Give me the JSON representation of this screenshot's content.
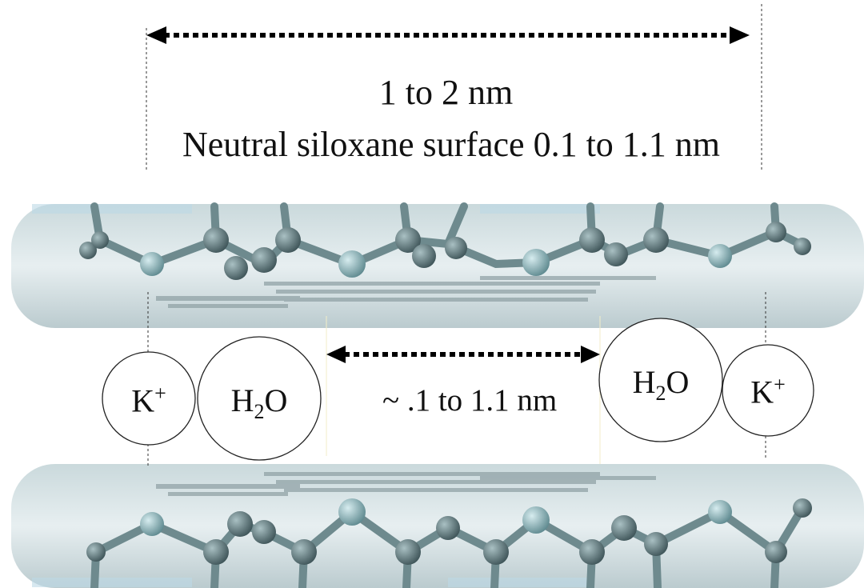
{
  "labels": {
    "outer_distance": "1 to 2 nm",
    "siloxane": "Neutral siloxane surface 0.1 to 1.1 nm",
    "inner_distance": "~ .1 to 1.1 nm"
  },
  "ions": {
    "left_k": {
      "base": "K",
      "sup": "+"
    },
    "left_water": {
      "pre": "H",
      "sub": "2",
      "post": "O"
    },
    "right_water": {
      "pre": "H",
      "sub": "2",
      "post": "O"
    },
    "right_k": {
      "base": "K",
      "sup": "+"
    }
  },
  "colors": {
    "layer_fill": "#d5e2e4",
    "layer_shadow": "#a9b9bd",
    "atom_dark": "#5b7478",
    "atom_light": "#8fb0b4",
    "arrow": "#000000"
  }
}
